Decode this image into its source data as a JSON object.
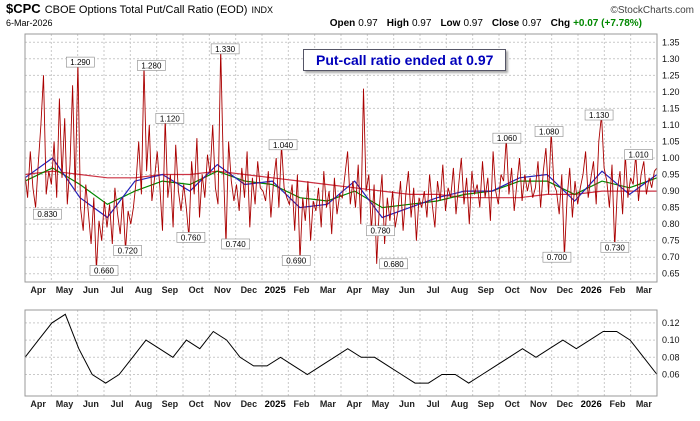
{
  "header": {
    "symbol": "$CPC",
    "name": "CBOE Options Total Put/Call Ratio (EOD)",
    "exchange": "INDX",
    "date": "6-Mar-2026",
    "source": "©StockCharts.com",
    "quote": {
      "open_label": "Open",
      "open": "0.97",
      "high_label": "High",
      "high": "0.97",
      "low_label": "Low",
      "low": "0.97",
      "close_label": "Close",
      "close": "0.97",
      "chg_label": "Chg",
      "chg": "+0.07 (+7.78%)"
    }
  },
  "annotation": {
    "text": "Put-call ratio ended at 0.97",
    "color": "#0000bb"
  },
  "colors": {
    "price": "#aa0000",
    "ma_blue": "#2222bb",
    "ma_green": "#008800",
    "ma_red": "#cc3344",
    "indicator": "#000000",
    "grid": "#c9c9c9",
    "chg_green": "#008800"
  },
  "chart_data": [
    {
      "type": "line",
      "title": "CBOE Options Total Put/Call Ratio (EOD)",
      "x_ticks": [
        "Apr",
        "May",
        "Jun",
        "Jul",
        "Aug",
        "Sep",
        "Oct",
        "Nov",
        "Dec",
        "2025",
        "Feb",
        "Mar",
        "Apr",
        "May",
        "Jun",
        "Jul",
        "Aug",
        "Sep",
        "Oct",
        "Nov",
        "Dec",
        "2026",
        "Feb",
        "Mar"
      ],
      "ylim": [
        0.625,
        1.375
      ],
      "y_ticks": [
        1.35,
        1.3,
        1.25,
        1.2,
        1.15,
        1.1,
        1.05,
        1.0,
        0.95,
        0.9,
        0.85,
        0.8,
        0.75,
        0.7,
        0.65
      ],
      "series": [
        {
          "name": "ma-red-long",
          "color": "#cc3344",
          "values": [
            0.95,
            0.96,
            0.95,
            0.94,
            0.94,
            0.95,
            0.95,
            0.96,
            0.95,
            0.94,
            0.93,
            0.92,
            0.91,
            0.9,
            0.89,
            0.89,
            0.88,
            0.88,
            0.88,
            0.89,
            0.89,
            0.9,
            0.9,
            0.9
          ]
        },
        {
          "name": "ma-green-mid",
          "color": "#008800",
          "values": [
            0.93,
            0.97,
            0.92,
            0.86,
            0.9,
            0.93,
            0.92,
            0.96,
            0.93,
            0.92,
            0.88,
            0.87,
            0.9,
            0.85,
            0.86,
            0.87,
            0.89,
            0.9,
            0.93,
            0.93,
            0.89,
            0.93,
            0.91,
            0.94
          ]
        },
        {
          "name": "ma-blue-short",
          "color": "#2222bb",
          "values": [
            0.94,
            1.0,
            0.88,
            0.82,
            0.93,
            0.95,
            0.9,
            0.98,
            0.92,
            0.93,
            0.85,
            0.86,
            0.93,
            0.82,
            0.85,
            0.88,
            0.9,
            0.9,
            0.94,
            0.95,
            0.87,
            0.96,
            0.89,
            0.95
          ]
        },
        {
          "name": "daily-put-call-ratio",
          "color": "#aa0000",
          "values": [
            0.95,
            0.88,
            1.02,
            0.91,
            0.85,
            0.98,
            1.1,
            1.25,
            0.89,
            0.96,
            0.92,
            1.05,
            0.88,
            1.18,
            0.94,
            1.12,
            0.86,
            0.98,
            1.22,
            0.9,
            1.29,
            0.85,
            0.78,
            0.92,
            0.83,
            0.74,
            0.88,
            0.66,
            0.81,
            0.75,
            0.87,
            0.79,
            0.86,
            0.74,
            0.91,
            0.83,
            0.77,
            0.88,
            0.72,
            0.84,
            0.8,
            0.85,
            0.93,
            1.05,
            0.89,
            1.28,
            0.96,
            1.1,
            0.87,
            0.94,
            1.02,
            0.91,
            0.78,
            1.12,
            0.88,
            0.95,
            0.79,
            1.04,
            0.9,
            0.84,
            0.92,
            0.85,
            0.76,
            0.99,
            0.89,
            1.06,
            0.82,
            0.95,
            0.88,
            1.01,
            0.95,
            1.1,
            0.91,
            0.86,
            1.33,
            0.98,
            0.74,
            1.05,
            0.93,
            0.87,
            0.92,
            0.84,
            0.97,
            0.88,
            1.02,
            0.79,
            0.94,
            0.86,
            0.99,
            0.91,
            0.9,
            0.87,
            0.96,
            0.82,
            0.93,
            1.0,
            0.85,
            1.04,
            0.91,
            0.88,
            0.86,
            0.92,
            0.78,
            0.95,
            0.69,
            0.88,
            0.81,
            0.93,
            0.75,
            0.87,
            0.84,
            0.91,
            0.79,
            0.96,
            0.85,
            0.9,
            0.77,
            0.94,
            0.83,
            0.89,
            0.88,
            0.95,
            1.02,
            0.86,
            0.93,
            0.85,
            0.98,
            0.8,
            1.21,
            0.9,
            0.95,
            0.78,
            0.92,
            0.68,
            0.85,
            0.95,
            0.74,
            0.88,
            0.81,
            0.9,
            0.79,
            0.84,
            0.93,
            0.78,
            0.89,
            0.96,
            0.82,
            0.91,
            0.75,
            0.88,
            0.85,
            0.9,
            0.82,
            0.95,
            0.86,
            0.79,
            0.93,
            0.87,
            0.98,
            0.84,
            0.91,
            0.88,
            0.97,
            0.83,
            0.92,
            1.0,
            0.86,
            0.94,
            0.8,
            0.96,
            0.89,
            0.92,
            0.85,
            0.99,
            0.88,
            0.94,
            0.81,
            1.02,
            0.9,
            0.86,
            0.95,
            0.93,
            1.06,
            0.89,
            0.97,
            0.84,
            0.92,
            1.0,
            0.87,
            0.95,
            0.9,
            0.94,
            0.88,
            0.91,
            0.99,
            0.85,
            0.96,
            1.03,
            0.89,
            1.08,
            0.92,
            0.9,
            0.83,
            0.95,
            0.7,
            0.88,
            0.97,
            0.82,
            0.93,
            0.86,
            0.91,
            0.95,
            1.02,
            0.88,
            0.94,
            0.99,
            0.86,
            1.05,
            1.13,
            0.97,
            0.93,
            0.85,
            0.98,
            0.73,
            0.9,
            0.96,
            0.83,
            1.01,
            0.88,
            0.94,
            0.92,
            1.01,
            0.87,
            0.95,
            0.99,
            0.89,
            0.94,
            0.91,
            0.96,
            0.97
          ]
        }
      ],
      "point_labels": [
        {
          "text": "1.290",
          "month": 2.1,
          "value": 1.29
        },
        {
          "text": "0.830",
          "month": 0.85,
          "value": 0.83
        },
        {
          "text": "0.660",
          "month": 3.0,
          "value": 0.66
        },
        {
          "text": "0.720",
          "month": 3.9,
          "value": 0.72
        },
        {
          "text": "1.280",
          "month": 4.8,
          "value": 1.28
        },
        {
          "text": "1.120",
          "month": 5.5,
          "value": 1.12
        },
        {
          "text": "0.760",
          "month": 6.3,
          "value": 0.76
        },
        {
          "text": "1.330",
          "month": 7.6,
          "value": 1.33
        },
        {
          "text": "0.740",
          "month": 8.0,
          "value": 0.74
        },
        {
          "text": "1.040",
          "month": 9.8,
          "value": 1.04
        },
        {
          "text": "0.690",
          "month": 10.3,
          "value": 0.69
        },
        {
          "text": "0.780",
          "month": 13.5,
          "value": 0.78
        },
        {
          "text": "0.680",
          "month": 14.0,
          "value": 0.68
        },
        {
          "text": "1.060",
          "month": 18.3,
          "value": 1.06
        },
        {
          "text": "1.080",
          "month": 19.9,
          "value": 1.08
        },
        {
          "text": "0.700",
          "month": 20.2,
          "value": 0.7
        },
        {
          "text": "1.130",
          "month": 21.8,
          "value": 1.13
        },
        {
          "text": "0.730",
          "month": 22.4,
          "value": 0.73
        },
        {
          "text": "1.010",
          "month": 23.3,
          "value": 1.01
        }
      ]
    },
    {
      "type": "line",
      "title": "lower-indicator",
      "x_ticks": [
        "Apr",
        "May",
        "Jun",
        "Jul",
        "Aug",
        "Sep",
        "Oct",
        "Nov",
        "Dec",
        "2025",
        "Feb",
        "Mar",
        "Apr",
        "May",
        "Jun",
        "Jul",
        "Aug",
        "Sep",
        "Oct",
        "Nov",
        "Dec",
        "2026",
        "Feb",
        "Mar"
      ],
      "ylim": [
        0.035,
        0.135
      ],
      "y_ticks": [
        0.12,
        0.1,
        0.08,
        0.06
      ],
      "series": [
        {
          "name": "indicator",
          "color": "#000000",
          "values": [
            0.08,
            0.1,
            0.12,
            0.13,
            0.09,
            0.06,
            0.05,
            0.06,
            0.08,
            0.1,
            0.09,
            0.08,
            0.1,
            0.09,
            0.11,
            0.1,
            0.08,
            0.07,
            0.07,
            0.08,
            0.07,
            0.06,
            0.07,
            0.08,
            0.09,
            0.08,
            0.08,
            0.07,
            0.06,
            0.05,
            0.05,
            0.06,
            0.06,
            0.05,
            0.06,
            0.07,
            0.08,
            0.09,
            0.08,
            0.09,
            0.1,
            0.09,
            0.1,
            0.11,
            0.11,
            0.1,
            0.08,
            0.06
          ]
        }
      ],
      "point_labels": []
    }
  ]
}
